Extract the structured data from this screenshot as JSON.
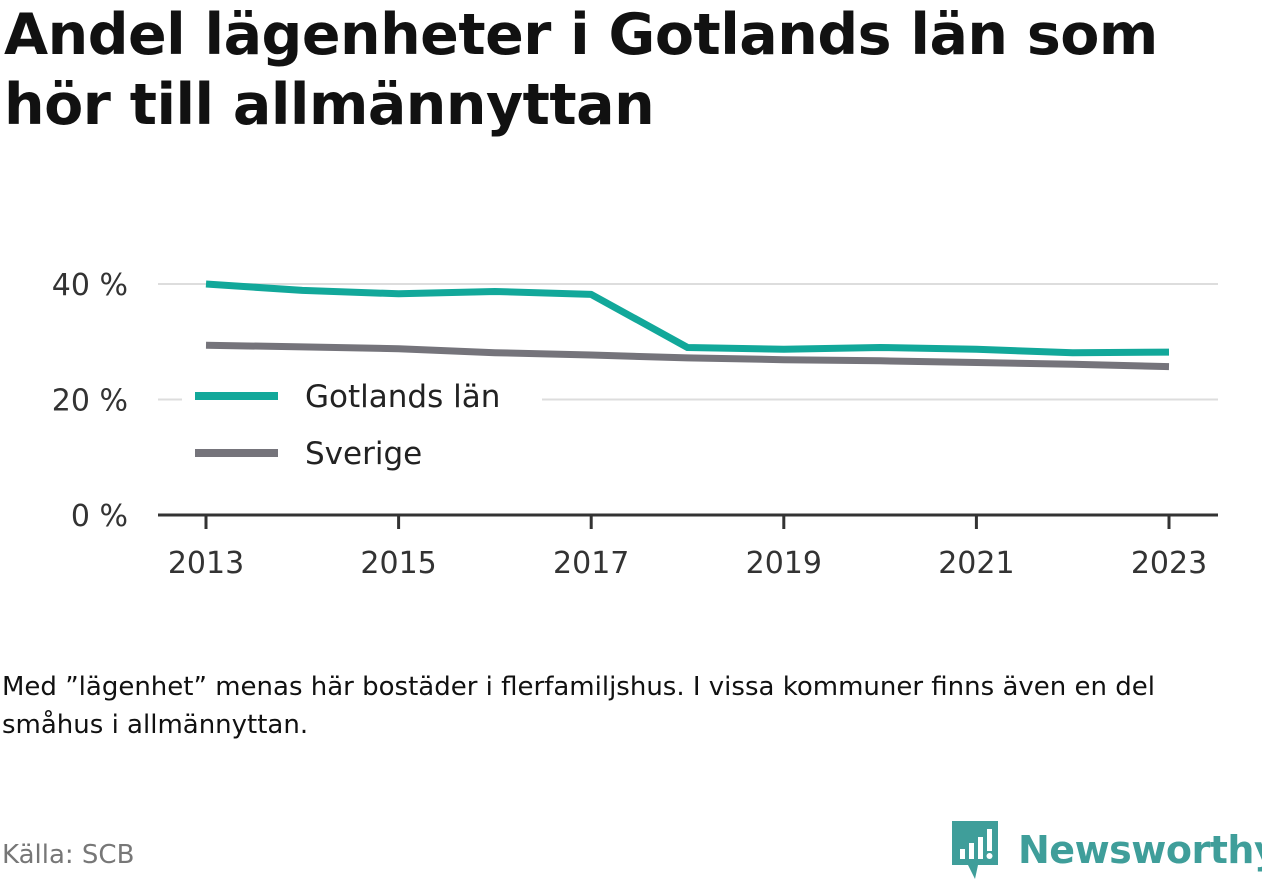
{
  "title": "Andel lägenheter i Gotlands län som hör till allmännyttan",
  "note": "Med ”lägenhet” menas här bostäder i flerfamiljshus. I vissa kommuner finns även en del småhus i allmännyttan.",
  "source": "Källa: SCB",
  "brand": {
    "name": "Newsworthy",
    "icon": "newsworthy-logo-icon",
    "color": "#3f9e9a"
  },
  "colors": {
    "gotland": "#12a89a",
    "sverige": "#75747b",
    "grid": "#dddddd",
    "axis": "#333333"
  },
  "chart_data": {
    "type": "line",
    "x": [
      2013,
      2014,
      2015,
      2016,
      2017,
      2018,
      2019,
      2020,
      2021,
      2022,
      2023
    ],
    "x_ticks": [
      "2013",
      "2015",
      "2017",
      "2019",
      "2021",
      "2023"
    ],
    "y_ticks": [
      "0 %",
      "20 %",
      "40 %"
    ],
    "ylim": [
      0,
      40
    ],
    "grid": true,
    "legend_position": "left, inside plot",
    "series": [
      {
        "name": "Gotlands län",
        "color": "#12a89a",
        "values": [
          40.0,
          38.9,
          38.3,
          38.7,
          38.2,
          29.0,
          28.7,
          29.0,
          28.7,
          28.1,
          28.2
        ]
      },
      {
        "name": "Sverige",
        "color": "#75747b",
        "values": [
          29.4,
          29.1,
          28.8,
          28.1,
          27.7,
          27.2,
          26.9,
          26.7,
          26.4,
          26.1,
          25.7
        ]
      }
    ]
  }
}
